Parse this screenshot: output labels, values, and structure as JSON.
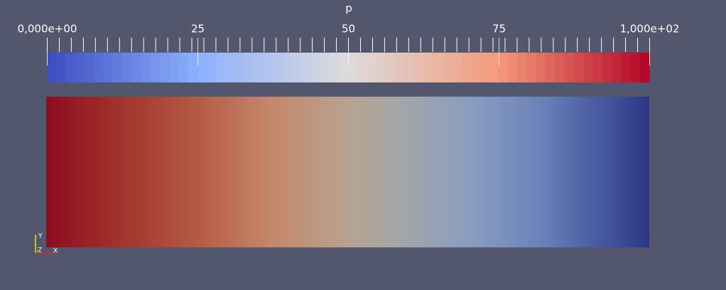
{
  "colorbar": {
    "title": "p",
    "range": [
      0,
      100
    ],
    "ticks": [
      {
        "value": 0,
        "label": "0,000e+00"
      },
      25,
      50,
      75,
      {
        "value": 100,
        "label": "1,000e+02"
      }
    ],
    "minor_ticks": [
      0,
      2,
      4,
      6,
      8,
      10,
      12,
      14,
      16,
      18,
      20,
      22,
      24,
      26,
      28,
      30,
      32,
      34,
      36,
      38,
      40,
      42,
      44,
      46,
      48,
      50,
      52,
      54,
      56,
      58,
      60,
      62,
      64,
      66,
      68,
      70,
      72,
      74,
      76,
      78,
      80,
      82,
      84,
      86,
      88,
      90,
      92,
      94,
      96,
      98,
      100
    ],
    "colormap": [
      {
        "value": 0,
        "color": "#3b4cc0"
      },
      {
        "value": 25,
        "color": "#8db0fe"
      },
      {
        "value": 50,
        "color": "#dddcdc"
      },
      {
        "value": 75,
        "color": "#f49a7b"
      },
      {
        "value": 100,
        "color": "#b40426"
      }
    ],
    "bands": 64
  },
  "orientation_axes": {
    "y": "Y",
    "z": "Z",
    "x": "X"
  }
}
